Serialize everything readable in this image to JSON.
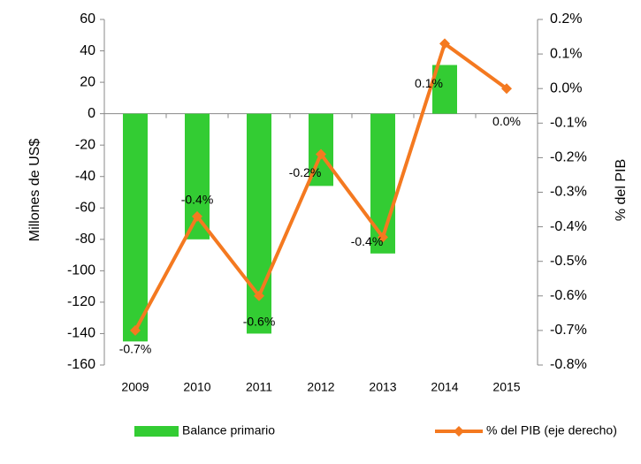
{
  "chart_data": {
    "type": "bar",
    "categories": [
      "2009",
      "2010",
      "2011",
      "2012",
      "2013",
      "2014",
      "2015"
    ],
    "y_label": "Millones de US$",
    "y2_label": "% del PIB",
    "ylim": [
      -160,
      60
    ],
    "yticks": [
      -160,
      -140,
      -120,
      -100,
      -80,
      -60,
      -40,
      -20,
      0,
      20,
      40,
      60
    ],
    "y2lim": [
      -0.8,
      0.2
    ],
    "y2ticks": [
      {
        "value": -0.8,
        "label": "-0.8%"
      },
      {
        "value": -0.7,
        "label": "-0.7%"
      },
      {
        "value": -0.6,
        "label": "-0.6%"
      },
      {
        "value": -0.5,
        "label": "-0.5%"
      },
      {
        "value": -0.4,
        "label": "-0.4%"
      },
      {
        "value": -0.3,
        "label": "-0.3%"
      },
      {
        "value": -0.2,
        "label": "-0.2%"
      },
      {
        "value": -0.1,
        "label": "-0.1%"
      },
      {
        "value": 0.0,
        "label": "0.0%"
      },
      {
        "value": 0.1,
        "label": "0.1%"
      },
      {
        "value": 0.2,
        "label": "0.2%"
      }
    ],
    "series": [
      {
        "name": "Balance primario",
        "type": "bar",
        "color": "#33cc33",
        "values": [
          -145,
          -80,
          -140,
          -46,
          -89,
          31,
          null
        ]
      },
      {
        "name": "% del PIB (eje derecho)",
        "type": "line",
        "axis": "y2",
        "color": "#f47920",
        "values": [
          -0.7,
          -0.37,
          -0.6,
          -0.19,
          -0.43,
          0.13,
          0.0
        ],
        "value_labels": [
          "-0.7%",
          "-0.4%",
          "-0.6%",
          "-0.2%",
          "-0.4%",
          "0.1%",
          "0.0%"
        ]
      }
    ],
    "legend": "bottom"
  }
}
